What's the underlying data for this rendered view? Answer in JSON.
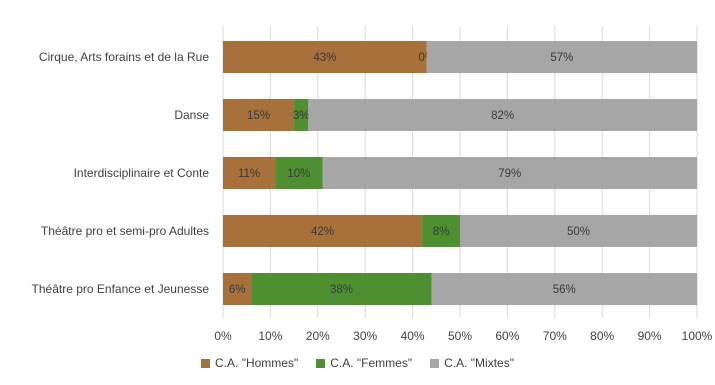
{
  "chart_data": {
    "type": "bar",
    "orientation": "horizontal",
    "stacked": true,
    "title": "",
    "xlabel": "",
    "ylabel": "",
    "xlim": [
      0,
      100
    ],
    "ticks": [
      "0%",
      "10%",
      "20%",
      "30%",
      "40%",
      "50%",
      "60%",
      "70%",
      "80%",
      "90%",
      "100%"
    ],
    "grid": true,
    "legend_position": "bottom",
    "categories": [
      "Cirque, Arts forains et de la Rue",
      "Danse",
      "Interdisciplinaire et Conte",
      "Théâtre pro et semi-pro Adultes",
      "Théâtre pro Enfance et Jeunesse"
    ],
    "series": [
      {
        "name": "C.A. \"Hommes\"",
        "color": "#a8703a",
        "values": [
          43,
          15,
          11,
          42,
          6
        ],
        "labels": [
          "43%",
          "15%",
          "11%",
          "42%",
          "6%"
        ]
      },
      {
        "name": "C.A. \"Femmes\"",
        "color": "#4e8f31",
        "values": [
          0,
          3,
          10,
          8,
          38
        ],
        "labels": [
          "0%",
          "3%",
          "10%",
          "8%",
          "38%"
        ]
      },
      {
        "name": "C.A. \"Mixtes\"",
        "color": "#a6a6a6",
        "values": [
          57,
          82,
          79,
          50,
          56
        ],
        "labels": [
          "57%",
          "82%",
          "79%",
          "50%",
          "56%"
        ]
      }
    ]
  }
}
